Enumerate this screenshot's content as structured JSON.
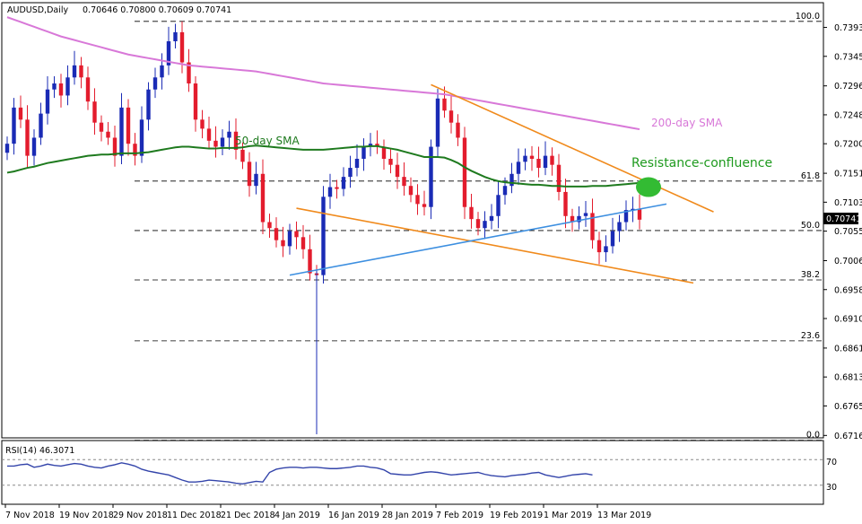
{
  "header": {
    "symbol": "AUDUSD,Daily",
    "ohlc": "0.70646 0.70800 0.70609 0.70741"
  },
  "price_tag": "0.70741",
  "fib_levels": [
    {
      "label": "100.0",
      "price": 0.7403
    },
    {
      "label": "61.8",
      "price": 0.7138
    },
    {
      "label": "50.0",
      "price": 0.7056
    },
    {
      "label": "38.2",
      "price": 0.6974
    },
    {
      "label": "23.6",
      "price": 0.6873
    },
    {
      "label": "0.0",
      "price": 0.6708
    }
  ],
  "annotations": {
    "sma200": "200-day SMA",
    "sma50": "50-day SMA",
    "resistance": "Resistance-confluence"
  },
  "rsi": {
    "title": "RSI(14) 46.3071",
    "ticks": [
      "70",
      "30"
    ],
    "overbought": 70,
    "oversold": 30,
    "values": [
      60,
      60,
      62,
      63,
      58,
      60,
      63,
      61,
      60,
      62,
      64,
      63,
      60,
      58,
      57,
      60,
      62,
      65,
      63,
      60,
      55,
      52,
      50,
      48,
      46,
      42,
      38,
      35,
      35,
      36,
      38,
      37,
      36,
      35,
      33,
      32,
      34,
      36,
      35,
      50,
      55,
      57,
      58,
      58,
      57,
      58,
      58,
      57,
      56,
      56,
      57,
      58,
      60,
      60,
      58,
      57,
      54,
      48,
      47,
      46,
      46,
      48,
      50,
      51,
      50,
      48,
      46,
      47,
      48,
      49,
      50,
      47,
      45,
      44,
      43,
      45,
      46,
      47,
      49,
      50,
      46,
      44,
      42,
      44,
      46,
      47,
      48,
      46
    ]
  },
  "chart_data": {
    "type": "candlestick",
    "title": "AUDUSD,Daily",
    "y_ticks": [
      "0.73930",
      "0.73450",
      "0.72960",
      "0.72480",
      "0.72000",
      "0.71510",
      "0.71030",
      "0.70550",
      "0.70060",
      "0.69580",
      "0.69100",
      "0.68610",
      "0.68130",
      "0.67650",
      "0.67160"
    ],
    "x_ticks": [
      "7 Nov 2018",
      "19 Nov 2018",
      "29 Nov 2018",
      "11 Dec 2018",
      "21 Dec 2018",
      "4 Jan 2019",
      "16 Jan 2019",
      "28 Jan 2019",
      "7 Feb 2019",
      "19 Feb 2019",
      "1 Mar 2019",
      "13 Mar 2019"
    ],
    "ylim": [
      0.6712,
      0.7434
    ],
    "closes": [
      0.72,
      0.726,
      0.724,
      0.718,
      0.721,
      0.725,
      0.729,
      0.73,
      0.728,
      0.731,
      0.733,
      0.731,
      0.727,
      0.7235,
      0.722,
      0.721,
      0.718,
      0.726,
      0.72,
      0.718,
      0.724,
      0.729,
      0.731,
      0.733,
      0.737,
      0.7385,
      0.7335,
      0.73,
      0.724,
      0.7225,
      0.7205,
      0.7195,
      0.721,
      0.722,
      0.719,
      0.717,
      0.713,
      0.715,
      0.707,
      0.706,
      0.704,
      0.703,
      0.7055,
      0.7045,
      0.7025,
      0.6985,
      0.6982,
      0.7112,
      0.7128,
      0.7125,
      0.7145,
      0.716,
      0.7175,
      0.7195,
      0.72,
      0.7195,
      0.7175,
      0.7165,
      0.7145,
      0.713,
      0.7115,
      0.71,
      0.7095,
      0.7195,
      0.7275,
      0.7255,
      0.7235,
      0.721,
      0.7095,
      0.7075,
      0.706,
      0.7072,
      0.708,
      0.7115,
      0.713,
      0.715,
      0.717,
      0.718,
      0.7175,
      0.716,
      0.718,
      0.7165,
      0.712,
      0.708,
      0.707,
      0.708,
      0.7085,
      0.704,
      0.702,
      0.703,
      0.7055,
      0.707,
      0.709,
      0.7092,
      0.7074
    ],
    "ma50": [
      0.7152,
      0.7154,
      0.7157,
      0.716,
      0.7162,
      0.7165,
      0.7168,
      0.717,
      0.7172,
      0.7174,
      0.7176,
      0.7178,
      0.718,
      0.7181,
      0.7182,
      0.7182,
      0.7183,
      0.7184,
      0.7184,
      0.7184,
      0.7185,
      0.7186,
      0.7188,
      0.719,
      0.7192,
      0.7194,
      0.7195,
      0.7195,
      0.7194,
      0.7193,
      0.7192,
      0.7192,
      0.7193,
      0.7193,
      0.7193,
      0.7194,
      0.7196,
      0.7197,
      0.7196,
      0.7195,
      0.7194,
      0.7193,
      0.7192,
      0.7191,
      0.719,
      0.719,
      0.719,
      0.719,
      0.7191,
      0.7192,
      0.7193,
      0.7194,
      0.7195,
      0.7195,
      0.7196,
      0.7196,
      0.7194,
      0.7192,
      0.719,
      0.7187,
      0.7184,
      0.7181,
      0.7178,
      0.7178,
      0.7178,
      0.7177,
      0.7173,
      0.7168,
      0.7161,
      0.7155,
      0.715,
      0.7145,
      0.7141,
      0.7138,
      0.7136,
      0.7135,
      0.7134,
      0.7133,
      0.7132,
      0.7132,
      0.7131,
      0.713,
      0.713,
      0.7129,
      0.7129,
      0.7129,
      0.7129,
      0.713,
      0.713,
      0.713,
      0.7131,
      0.7132,
      0.7133,
      0.7134,
      0.7135
    ],
    "ma200": [
      0.741,
      0.7406,
      0.7402,
      0.7398,
      0.7394,
      0.739,
      0.7386,
      0.7382,
      0.7378,
      0.7375,
      0.7372,
      0.7369,
      0.7366,
      0.7363,
      0.736,
      0.7357,
      0.7354,
      0.7351,
      0.7348,
      0.7346,
      0.7344,
      0.7342,
      0.734,
      0.7338,
      0.7336,
      0.7334,
      0.7332,
      0.733,
      0.7329,
      0.7328,
      0.7327,
      0.7326,
      0.7325,
      0.7324,
      0.7323,
      0.7322,
      0.7321,
      0.732,
      0.7318,
      0.7316,
      0.7314,
      0.7312,
      0.731,
      0.7308,
      0.7306,
      0.7304,
      0.7302,
      0.73,
      0.7299,
      0.7298,
      0.7297,
      0.7296,
      0.7295,
      0.7294,
      0.7293,
      0.7292,
      0.7291,
      0.729,
      0.7289,
      0.7288,
      0.7287,
      0.7286,
      0.7285,
      0.7284,
      0.7283,
      0.7282,
      0.728,
      0.7278,
      0.7276,
      0.7274,
      0.7272,
      0.727,
      0.7268,
      0.7266,
      0.7264,
      0.7262,
      0.726,
      0.7258,
      0.7256,
      0.7254,
      0.7252,
      0.725,
      0.7248,
      0.7246,
      0.7244,
      0.7242,
      0.724,
      0.7238,
      0.7236,
      0.7234,
      0.7232,
      0.723,
      0.7228,
      0.7226,
      0.7224
    ],
    "colors": {
      "up": "#1a2bb5",
      "down": "#e31c2d",
      "ma50": "#1e7a1e",
      "ma200": "#d878d8",
      "trend_orange": "#f08a1c",
      "trend_blue": "#3d8fe0",
      "zone": "#33bb33"
    }
  }
}
